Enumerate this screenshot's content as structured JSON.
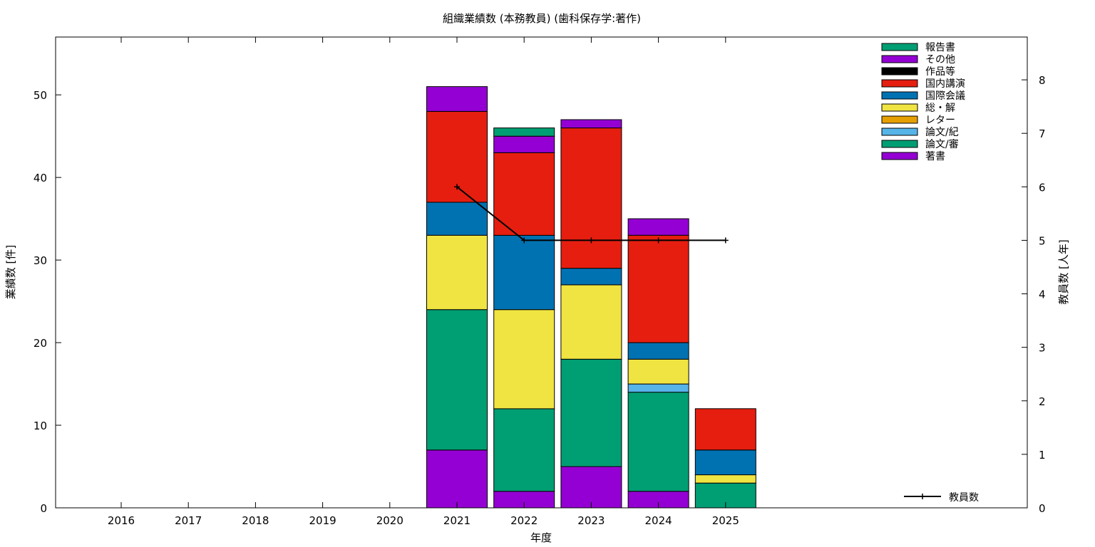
{
  "chart_data": {
    "type": "bar",
    "stacked": true,
    "title": "組織業績数 (本務教員) (歯科保存学:著作)",
    "xlabel": "年度",
    "ylabel": "業績数 [件]",
    "y2label": "教員数 [人年]",
    "categories": [
      "2016",
      "2017",
      "2018",
      "2019",
      "2020",
      "2021",
      "2022",
      "2023",
      "2024",
      "2025"
    ],
    "ylim": [
      0,
      57
    ],
    "y2lim": [
      0,
      8.8
    ],
    "yticks": [
      0,
      10,
      20,
      30,
      40,
      50
    ],
    "y2ticks": [
      0,
      1,
      2,
      3,
      4,
      5,
      6,
      7,
      8
    ],
    "grid": false,
    "legend_position": "top-right",
    "series": [
      {
        "name": "著書",
        "color": "#9400d3",
        "values": [
          0,
          0,
          0,
          0,
          0,
          7,
          2,
          5,
          2,
          0
        ]
      },
      {
        "name": "論文/審",
        "color": "#009e73",
        "values": [
          0,
          0,
          0,
          0,
          0,
          17,
          10,
          13,
          12,
          3
        ]
      },
      {
        "name": "論文/紀",
        "color": "#56b4e9",
        "values": [
          0,
          0,
          0,
          0,
          0,
          0,
          0,
          0,
          1,
          0
        ]
      },
      {
        "name": "レター",
        "color": "#e69f00",
        "values": [
          0,
          0,
          0,
          0,
          0,
          0,
          0,
          0,
          0,
          0
        ]
      },
      {
        "name": "総・解",
        "color": "#f0e442",
        "values": [
          0,
          0,
          0,
          0,
          0,
          9,
          12,
          9,
          3,
          1
        ]
      },
      {
        "name": "国際会議",
        "color": "#0072b2",
        "values": [
          0,
          0,
          0,
          0,
          0,
          4,
          9,
          2,
          2,
          3
        ]
      },
      {
        "name": "国内講演",
        "color": "#e51e10",
        "values": [
          0,
          0,
          0,
          0,
          0,
          11,
          10,
          17,
          13,
          5
        ]
      },
      {
        "name": "作品等",
        "color": "#000000",
        "values": [
          0,
          0,
          0,
          0,
          0,
          0,
          0,
          0,
          0,
          0
        ]
      },
      {
        "name": "その他",
        "color": "#9400d3",
        "values": [
          0,
          0,
          0,
          0,
          0,
          3,
          2,
          1,
          2,
          0
        ]
      },
      {
        "name": "報告書",
        "color": "#009e73",
        "values": [
          0,
          0,
          0,
          0,
          0,
          0,
          1,
          0,
          0,
          0
        ]
      }
    ],
    "line_series": {
      "name": "教員数",
      "axis": "y2",
      "color": "#000000",
      "x": [
        "2021",
        "2022",
        "2023",
        "2024",
        "2025"
      ],
      "values": [
        6,
        5,
        5,
        5,
        5
      ]
    }
  }
}
